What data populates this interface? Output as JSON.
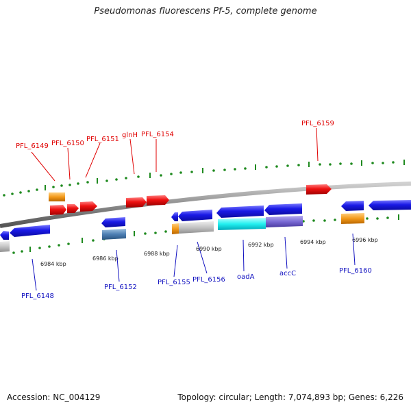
{
  "title": "Pseudomonas fluorescens Pf-5, complete genome",
  "footer": {
    "accession": "Accession: NC_004129",
    "summary": "Topology: circular; Length: 7,074,893 bp; Genes: 6,226"
  },
  "scale_labels": [
    "6984 kbp",
    "6986 kbp",
    "6988 kbp",
    "6990 kbp",
    "6992 kbp",
    "6994 kbp",
    "6996 kbp"
  ],
  "top_strand_labels": [
    "PFL_6149",
    "PFL_6150",
    "PFL_6151",
    "glnH",
    "PFL_6154",
    "PFL_6159"
  ],
  "bottom_strand_labels": [
    "PFL_6148",
    "PFL_6152",
    "PFL_6155",
    "PFL_6156",
    "oadA",
    "accC",
    "PFL_6160"
  ],
  "colors": {
    "backbone": "#8c8c8c",
    "ticks": "#1f8a1f",
    "top_label": "#e00000",
    "bottom_label": "#1010c0",
    "gene_red": "#ee1111",
    "gene_blue": "#1a1ae6",
    "gene_orange": "#f39a1a",
    "gene_gray": "#c4c4c4",
    "gene_cyan": "#22f0f0",
    "gene_purple": "#7a6ad4",
    "gene_steel": "#4d7fb3"
  }
}
